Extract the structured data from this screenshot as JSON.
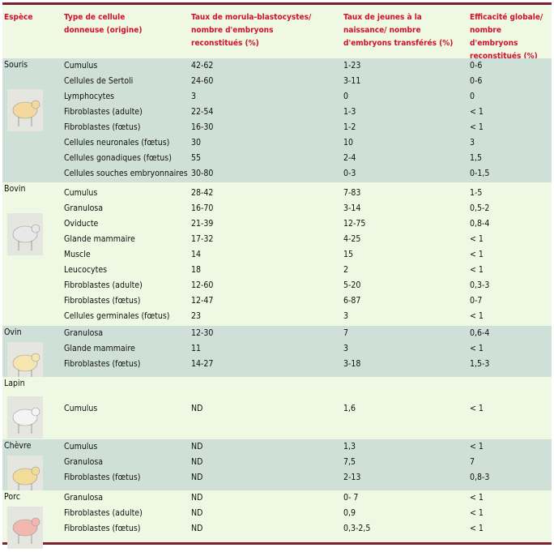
{
  "headers": [
    "Espèce",
    "Type de cellule donneuse (origine)",
    "Taux de morula-blastocystes/ nombre d'embryons reconstitués (%)",
    "Taux de jeunes à la naissance/ nombre d'embryons transférés (%)",
    "Efficacité globale/ nombre d'embryons reconstitués (%)"
  ],
  "colors": {
    "header_text": "#d0102a",
    "band_dark": "#cfe0d8",
    "band_light": "#eef8e2",
    "rule": "#7a2030"
  },
  "groups": [
    {
      "species": "Souris",
      "icon": "mouse-icon",
      "tone": "#f3d9a0",
      "rows": [
        [
          "Cumulus",
          "42-62",
          "1-23",
          "0-6"
        ],
        [
          "Cellules de Sertoli",
          "24-60",
          "3-11",
          "0-6"
        ],
        [
          "Lymphocytes",
          "3",
          "0",
          "0"
        ],
        [
          "Fibroblastes (adulte)",
          "22-54",
          "1-3",
          "< 1"
        ],
        [
          "Fibroblastes (fœtus)",
          "16-30",
          "1-2",
          "< 1"
        ],
        [
          "Cellules neuronales (fœtus)",
          "30",
          "10",
          "3"
        ],
        [
          "Cellules gonadiques (fœtus)",
          "55",
          "2-4",
          "1,5"
        ],
        [
          "Cellules souches embryonnaires",
          "30-80",
          "0-3",
          "0-1,5"
        ]
      ]
    },
    {
      "species": "Bovin",
      "icon": "cow-icon",
      "tone": "#e8e8e8",
      "rows": [
        [
          "Cumulus",
          "28-42",
          "7-83",
          "1-5"
        ],
        [
          "Granulosa",
          "16-70",
          "3-14",
          "0,5-2"
        ],
        [
          "Oviducte",
          "21-39",
          "12-75",
          "0,8-4"
        ],
        [
          "Glande mammaire",
          "17-32",
          "4-25",
          "< 1"
        ],
        [
          "Muscle",
          "14",
          "15",
          "< 1"
        ],
        [
          "Leucocytes",
          "18",
          "2",
          "< 1"
        ],
        [
          "Fibroblastes (adulte)",
          "12-60",
          "5-20",
          "0,3-3"
        ],
        [
          "Fibroblastes (fœtus)",
          "12-47",
          "6-87",
          "0-7"
        ],
        [
          "Cellules germinales (fœtus)",
          "23",
          "3",
          "< 1"
        ]
      ]
    },
    {
      "species": "Ovin",
      "icon": "sheep-icon",
      "tone": "#f5e6b0",
      "rows": [
        [
          "Granulosa",
          "12-30",
          "7",
          "0,6-4"
        ],
        [
          "Glande mammaire",
          "11",
          "3",
          "< 1"
        ],
        [
          "Fibroblastes (fœtus)",
          "14-27",
          "3-18",
          "1,5-3"
        ]
      ]
    },
    {
      "species": "Lapin",
      "icon": "rabbit-icon",
      "tone": "#f4f4f4",
      "rows": [
        [
          "Cumulus",
          "ND",
          "1,6",
          "< 1"
        ]
      ]
    },
    {
      "species": "Chèvre",
      "icon": "goat-icon",
      "tone": "#f3dc9a",
      "rows": [
        [
          "Cumulus",
          "ND",
          "1,3",
          "< 1"
        ],
        [
          "Granulosa",
          "ND",
          "7,5",
          "7"
        ],
        [
          "Fibroblastes (fœtus)",
          "ND",
          "2-13",
          "0,8-3"
        ]
      ]
    },
    {
      "species": "Porc",
      "icon": "pig-icon",
      "tone": "#f2b8b0",
      "rows": [
        [
          "Granulosa",
          "ND",
          "0- 7",
          "< 1"
        ],
        [
          "Fibroblastes (adulte)",
          "ND",
          "0,9",
          "< 1"
        ],
        [
          "Fibroblastes (fœtus)",
          "ND",
          "0,3-2,5",
          "< 1"
        ]
      ]
    }
  ]
}
